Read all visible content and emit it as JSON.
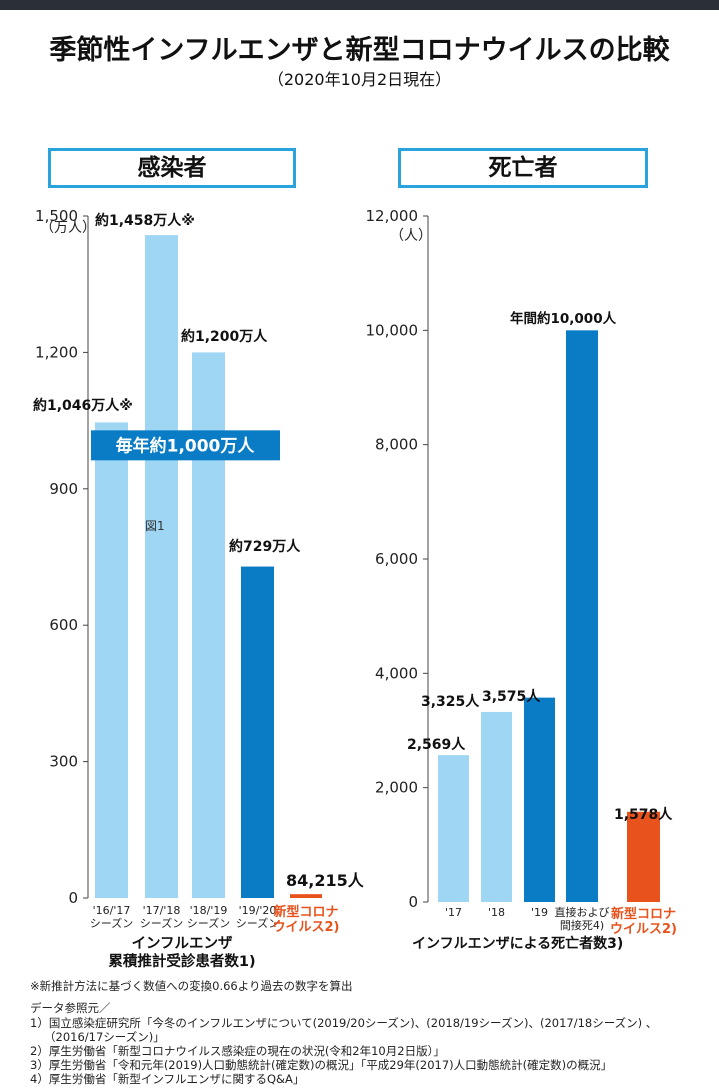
{
  "title": "季節性インフルエンザと新型コロナウイルスの比較",
  "subtitle": "（2020年10月2日現在）",
  "colors": {
    "light": "#9ed6f3",
    "dark": "#0a7cc6",
    "covid": "#e8531d",
    "accent": "#29a3dc",
    "covid_text": "#e8531d"
  },
  "chart_data": [
    {
      "type": "bar",
      "panel_title": "感染者",
      "y_unit": "（万人）",
      "ylim": [
        0,
        1500
      ],
      "yticks": [
        0,
        300,
        600,
        900,
        "1,200",
        "1,500"
      ],
      "ytick_values": [
        0,
        300,
        600,
        900,
        1200,
        1500
      ],
      "categories": [
        "'16/'17\nシーズン",
        "'17/'18\nシーズン",
        "'18/'19\nシーズン",
        "'19/'20\nシーズン",
        "新型コロナ\nウイルス2)"
      ],
      "values": [
        1046,
        1458,
        1200,
        729,
        8.4215
      ],
      "bar_styles": [
        "light",
        "light",
        "light",
        "dark",
        "covid"
      ],
      "data_labels": [
        "約1,046万人※",
        "約1,458万人※",
        "約1,200万人",
        "約729万人",
        "84,215人"
      ],
      "annotation_banner": "毎年約1,000万人",
      "annotation_banner_value": 1000,
      "figure_label": "図1",
      "xlabel": "インフルエンザ\n累積推計受診患者数1)"
    },
    {
      "type": "bar",
      "panel_title": "死亡者",
      "y_unit": "（人）",
      "ylim": [
        0,
        12000
      ],
      "yticks": [
        "0",
        "2,000",
        "4,000",
        "6,000",
        "8,000",
        "10,000",
        "12,000"
      ],
      "ytick_values": [
        0,
        2000,
        4000,
        6000,
        8000,
        10000,
        12000
      ],
      "categories": [
        "'17",
        "'18",
        "'19",
        "直接および\n間接死4)",
        "新型コロナ\nウイルス2)"
      ],
      "values": [
        2569,
        3325,
        3575,
        10000,
        1578
      ],
      "bar_styles": [
        "light",
        "light",
        "dark",
        "dark",
        "covid"
      ],
      "data_labels": [
        "2,569人",
        "3,325人",
        "3,575人",
        "年間約10,000人",
        "1,578人"
      ],
      "xlabel": "インフルエンザによる死亡者数3)"
    }
  ],
  "footnotes": [
    "※新推計方法に基づく数値への変換0.66より過去の数字を算出",
    "データ参照元／",
    "1）国立感染症研究所「今冬のインフルエンザについて(2019/20シーズン)、(2018/19シーズン)、(2017/18シーズン) 、",
    "（2016/17シーズン)」",
    "2）厚生労働省「新型コロナウイルス感染症の現在の状況(令和2年10月2日版）」",
    "3）厚生労働省「令和元年(2019)人口動態統計(確定数)の概況」「平成29年(2017)人口動態統計(確定数)の概況」",
    "4）厚生労働省「新型インフルエンザに関するQ&A」"
  ]
}
